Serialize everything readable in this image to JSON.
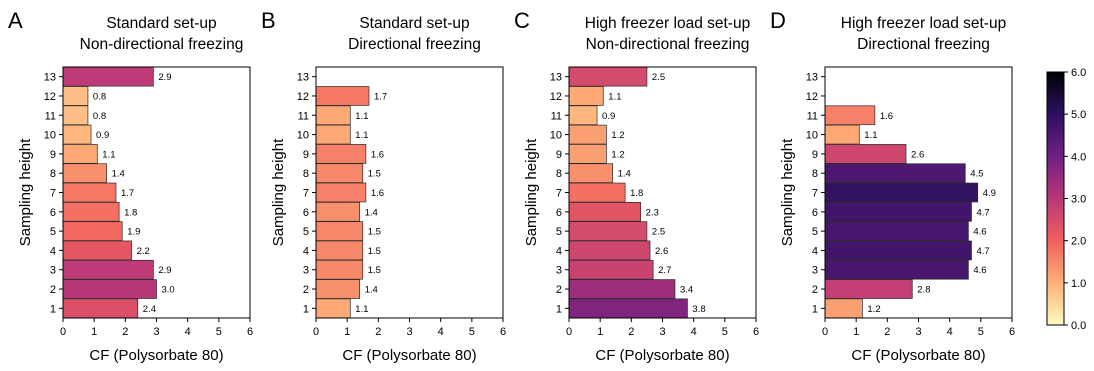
{
  "colorbar": {
    "min": 0,
    "max": 6,
    "ticks": [
      "0.0",
      "1.0",
      "2.0",
      "3.0",
      "4.0",
      "5.0",
      "6.0"
    ],
    "colormap": "magma_r",
    "stops": [
      "#fcfdbf",
      "#feb078",
      "#f1605d",
      "#b73779",
      "#721f81",
      "#2c115f",
      "#000004"
    ]
  },
  "chart_data": [
    {
      "type": "bar",
      "orientation": "horizontal",
      "panel_letter": "A",
      "title": [
        "Standard set-up",
        "Non-directional freezing"
      ],
      "xlabel": "CF (Polysorbate 80)",
      "ylabel": "Sampling height",
      "xlim": [
        0,
        6
      ],
      "x_ticks": [
        "0",
        "1",
        "2",
        "3",
        "4",
        "5",
        "6"
      ],
      "categories": [
        "1",
        "2",
        "3",
        "4",
        "5",
        "6",
        "7",
        "8",
        "9",
        "10",
        "11",
        "12",
        "13"
      ],
      "values": [
        2.4,
        3.0,
        2.9,
        2.2,
        1.9,
        1.8,
        1.7,
        1.4,
        1.1,
        0.9,
        0.8,
        0.8,
        2.9
      ],
      "labels": [
        "2.4",
        "3.0",
        "2.9",
        "2.2",
        "1.9",
        "1.8",
        "1.7",
        "1.4",
        "1.1",
        "0.9",
        "0.8",
        "0.8",
        "2.9"
      ],
      "grid": false
    },
    {
      "type": "bar",
      "orientation": "horizontal",
      "panel_letter": "B",
      "title": [
        "Standard set-up",
        "Directional freezing"
      ],
      "xlabel": "CF (Polysorbate 80)",
      "ylabel": "Sampling height",
      "xlim": [
        0,
        6
      ],
      "x_ticks": [
        "0",
        "1",
        "2",
        "3",
        "4",
        "5",
        "6"
      ],
      "categories": [
        "1",
        "2",
        "3",
        "4",
        "5",
        "6",
        "7",
        "8",
        "9",
        "10",
        "11",
        "12",
        "13"
      ],
      "values": [
        1.1,
        1.4,
        1.5,
        1.5,
        1.5,
        1.4,
        1.6,
        1.5,
        1.6,
        1.1,
        1.1,
        1.7,
        null
      ],
      "labels": [
        "1.1",
        "1.4",
        "1.5",
        "1.5",
        "1.5",
        "1.4",
        "1.6",
        "1.5",
        "1.6",
        "1.1",
        "1.1",
        "1.7",
        ""
      ],
      "grid": false
    },
    {
      "type": "bar",
      "orientation": "horizontal",
      "panel_letter": "C",
      "title": [
        "High freezer load set-up",
        "Non-directional freezing"
      ],
      "xlabel": "CF (Polysorbate 80)",
      "ylabel": "Sampling height",
      "xlim": [
        0,
        6
      ],
      "x_ticks": [
        "0",
        "1",
        "2",
        "3",
        "4",
        "5",
        "6"
      ],
      "categories": [
        "1",
        "2",
        "3",
        "4",
        "5",
        "6",
        "7",
        "8",
        "9",
        "10",
        "11",
        "12",
        "13"
      ],
      "values": [
        3.8,
        3.4,
        2.7,
        2.6,
        2.5,
        2.3,
        1.8,
        1.4,
        1.2,
        1.2,
        0.9,
        1.1,
        2.5
      ],
      "labels": [
        "3.8",
        "3.4",
        "2.7",
        "2.6",
        "2.5",
        "2.3",
        "1.8",
        "1.4",
        "1.2",
        "1.2",
        "0.9",
        "1.1",
        "2.5"
      ],
      "grid": false
    },
    {
      "type": "bar",
      "orientation": "horizontal",
      "panel_letter": "D",
      "title": [
        "High freezer load set-up",
        "Directional freezing"
      ],
      "xlabel": "CF (Polysorbate 80)",
      "ylabel": "Sampling height",
      "xlim": [
        0,
        6
      ],
      "x_ticks": [
        "0",
        "1",
        "2",
        "3",
        "4",
        "5",
        "6"
      ],
      "categories": [
        "1",
        "2",
        "3",
        "4",
        "5",
        "6",
        "7",
        "8",
        "9",
        "10",
        "11",
        "12",
        "13"
      ],
      "values": [
        1.2,
        2.8,
        4.6,
        4.7,
        4.6,
        4.7,
        4.9,
        4.5,
        2.6,
        1.1,
        1.6,
        null,
        null
      ],
      "labels": [
        "1.2",
        "2.8",
        "4.6",
        "4.7",
        "4.6",
        "4.7",
        "4.9",
        "4.5",
        "2.6",
        "1.1",
        "1.6",
        "",
        ""
      ],
      "grid": false
    }
  ]
}
